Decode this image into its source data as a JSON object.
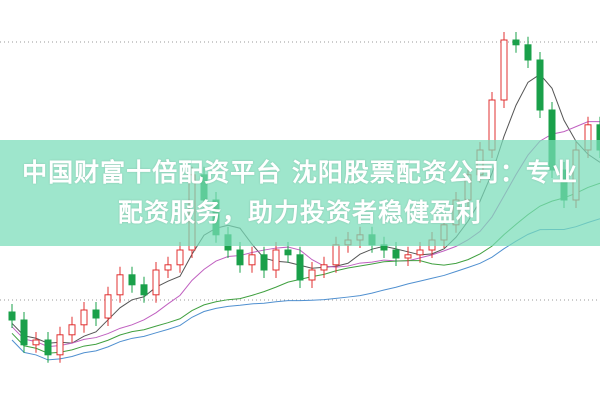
{
  "title_line1": "中国财富十倍配资平台 沈阳股票配资公司：专业",
  "title_line2": "配资服务，助力投资者稳健盈利",
  "chart_data": {
    "type": "candlestick",
    "grid": "dotted horizontal",
    "colors": {
      "up": "#e03030",
      "down": "#1aa04a",
      "ma5": "#555555",
      "ma10": "#c060c0",
      "ma20": "#40a040",
      "ma30": "#5090d0"
    },
    "open": [
      22,
      20,
      13.8,
      15,
      11.3,
      16.3,
      18.8,
      22.5,
      20.5,
      26.3,
      31.3,
      28.8,
      26.3,
      32.5,
      33.8,
      37.5,
      56.3,
      50,
      41.3,
      37.5,
      33.8,
      36.3,
      32.5,
      37.5,
      36.3,
      30,
      32.5,
      33.8,
      38.8,
      40,
      41.3,
      38.8,
      37.5,
      35.5,
      36.3,
      37.5,
      40,
      43.8,
      50,
      56.3,
      62.5,
      75,
      90,
      88.8,
      85,
      72.5,
      57.5,
      50,
      62.5,
      68.8
    ],
    "close": [
      20,
      13.8,
      15,
      11.3,
      16.3,
      18.8,
      22.5,
      20.5,
      26.3,
      31.3,
      28.8,
      26.3,
      32.5,
      33.8,
      37.5,
      56.3,
      50,
      41.3,
      37.5,
      33.8,
      36.3,
      32.5,
      37.5,
      36.3,
      30,
      32.5,
      33.8,
      38.8,
      40,
      41.3,
      38.8,
      37.5,
      35.5,
      36.3,
      37.5,
      40,
      43.8,
      50,
      56.3,
      62.5,
      75,
      90,
      88.8,
      85,
      72.5,
      57.5,
      50,
      62.5,
      68.8,
      62.5
    ]
  }
}
